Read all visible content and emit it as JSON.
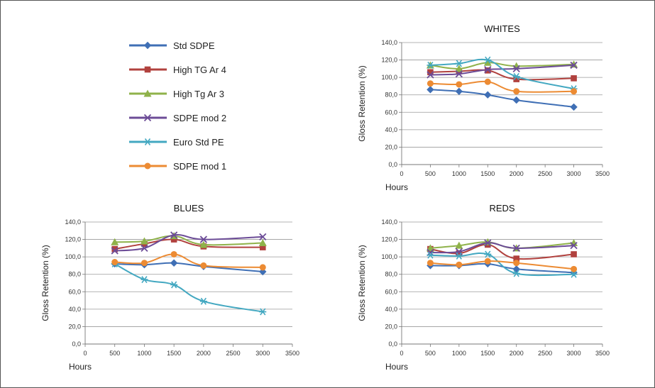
{
  "legend": [
    {
      "name": "Std SDPE",
      "color": "#3f6fb5",
      "marker": "diamond"
    },
    {
      "name": "High TG Ar 4",
      "color": "#b1413e",
      "marker": "square"
    },
    {
      "name": "High Tg Ar 3",
      "color": "#8fb24a",
      "marker": "triangle"
    },
    {
      "name": "SDPE mod 2",
      "color": "#6c4c97",
      "marker": "x"
    },
    {
      "name": "Euro Std PE",
      "color": "#43a8c1",
      "marker": "asterisk"
    },
    {
      "name": "SDPE mod 1",
      "color": "#ec8b33",
      "marker": "circle"
    }
  ],
  "chart_data": [
    {
      "type": "line",
      "title": "WHITES",
      "xlabel": "Hours",
      "ylabel": "Gloss Retention (%)",
      "xlim": [
        0,
        3500
      ],
      "ylim": [
        0,
        140
      ],
      "xticks": [
        "0",
        "500",
        "1000",
        "1500",
        "2000",
        "2500",
        "3000",
        "3500"
      ],
      "yticks": [
        "0,0",
        "20,0",
        "40,0",
        "60,0",
        "80,0",
        "100,0",
        "120,0",
        "140,0"
      ],
      "grid": true,
      "x": [
        500,
        1000,
        1500,
        2000,
        3000
      ],
      "series": [
        {
          "name": "Std SDPE",
          "values": [
            86,
            84,
            80,
            74,
            66
          ]
        },
        {
          "name": "High TG Ar 4",
          "values": [
            106,
            107,
            108,
            98,
            99
          ]
        },
        {
          "name": "High Tg Ar 3",
          "values": [
            114,
            110,
            117,
            113,
            115
          ]
        },
        {
          "name": "SDPE mod 2",
          "values": [
            103,
            104,
            109,
            110,
            114
          ]
        },
        {
          "name": "Euro Std PE",
          "values": [
            114,
            116,
            120,
            101,
            87
          ]
        },
        {
          "name": "SDPE mod 1",
          "values": [
            93,
            92,
            95,
            84,
            84
          ]
        }
      ]
    },
    {
      "type": "line",
      "title": "BLUES",
      "xlabel": "Hours",
      "ylabel": "Gloss Retention (%)",
      "xlim": [
        0,
        3500
      ],
      "ylim": [
        0,
        140
      ],
      "xticks": [
        "0",
        "500",
        "1000",
        "1500",
        "2000",
        "2500",
        "3000",
        "3500"
      ],
      "yticks": [
        "0,0",
        "20,0",
        "40,0",
        "60,0",
        "80,0",
        "100,0",
        "120,0",
        "140,0"
      ],
      "grid": true,
      "x": [
        500,
        1000,
        1500,
        2000,
        3000
      ],
      "series": [
        {
          "name": "Std SDPE",
          "values": [
            92,
            91,
            93,
            89,
            83
          ]
        },
        {
          "name": "High TG Ar 4",
          "values": [
            109,
            115,
            120,
            112,
            111
          ]
        },
        {
          "name": "High Tg Ar 3",
          "values": [
            117,
            118,
            124,
            114,
            116
          ]
        },
        {
          "name": "SDPE mod 2",
          "values": [
            107,
            110,
            125,
            120,
            123
          ]
        },
        {
          "name": "Euro Std PE",
          "values": [
            92,
            74,
            68,
            49,
            37
          ]
        },
        {
          "name": "SDPE mod 1",
          "values": [
            94,
            93,
            103,
            90,
            88
          ]
        }
      ]
    },
    {
      "type": "line",
      "title": "REDS",
      "xlabel": "Hours",
      "ylabel": "Gloss Retention (%)",
      "xlim": [
        0,
        3500
      ],
      "ylim": [
        0,
        140
      ],
      "xticks": [
        "0",
        "500",
        "1000",
        "1500",
        "2000",
        "2500",
        "3000",
        "3500"
      ],
      "yticks": [
        "0,0",
        "20,0",
        "40,0",
        "60,0",
        "80,0",
        "100,0",
        "120,0",
        "140,0"
      ],
      "grid": true,
      "x": [
        500,
        1000,
        1500,
        2000,
        3000
      ],
      "series": [
        {
          "name": "Std SDPE",
          "values": [
            90,
            90,
            92,
            86,
            82
          ]
        },
        {
          "name": "High TG Ar 4",
          "values": [
            109,
            104,
            114,
            98,
            103
          ]
        },
        {
          "name": "High Tg Ar 3",
          "values": [
            110,
            113,
            117,
            110,
            116
          ]
        },
        {
          "name": "SDPE mod 2",
          "values": [
            105,
            106,
            116,
            110,
            113
          ]
        },
        {
          "name": "Euro Std PE",
          "values": [
            102,
            101,
            103,
            81,
            80
          ]
        },
        {
          "name": "SDPE mod 1",
          "values": [
            93,
            91,
            95,
            93,
            86
          ]
        }
      ]
    }
  ]
}
